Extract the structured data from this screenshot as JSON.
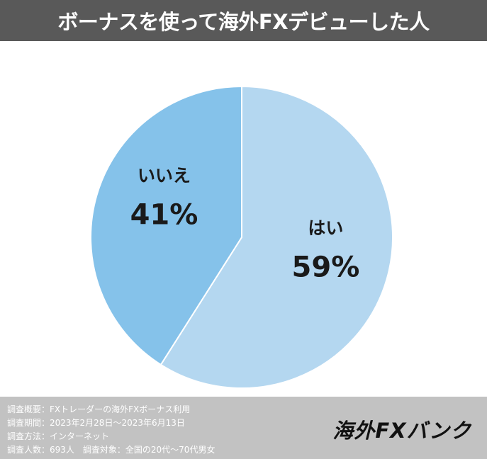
{
  "header": {
    "title": "ボーナスを使って海外FXデビューした人"
  },
  "chart_data": {
    "type": "pie",
    "title": "ボーナスを使って海外FXデビューした人",
    "categories": [
      "はい",
      "いいえ"
    ],
    "values": [
      59,
      41
    ],
    "value_labels": [
      "59%",
      "41%"
    ],
    "colors": [
      "#B4D7F0",
      "#85C2EA"
    ],
    "start_angle_deg": 0,
    "direction": "clockwise",
    "legend": "none"
  },
  "footer": {
    "survey": {
      "overview": "調査概要：FXトレーダーの海外FXボーナス利用",
      "period": "調査期間：2023年2月28日〜2023年6月13日",
      "method": "調査方法：インターネット",
      "respondents": "調査人数：693人",
      "target": "調査対象：全国の20代〜70代男女"
    },
    "brand": "海外FXバンク"
  }
}
